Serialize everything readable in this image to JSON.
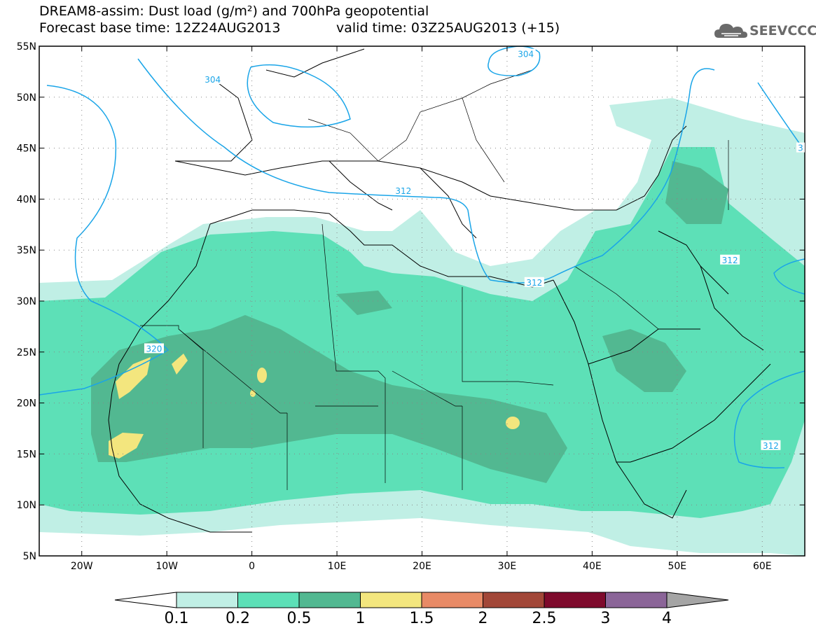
{
  "title_line1": "DREAM8-assim: Dust load (g/m²) and 700hPa geopotential",
  "title_line2": "Forecast base time: 12Z24AUG2013",
  "title_line3": "valid time: 03Z25AUG2013 (+15)",
  "logo_text": "SEEVCCC",
  "map": {
    "lon_range": [
      -25,
      65
    ],
    "lat_range": [
      5,
      55
    ],
    "lon_ticks": [
      {
        "value": -20,
        "label": "20W"
      },
      {
        "value": -10,
        "label": "10W"
      },
      {
        "value": 0,
        "label": "0"
      },
      {
        "value": 10,
        "label": "10E"
      },
      {
        "value": 20,
        "label": "20E"
      },
      {
        "value": 30,
        "label": "30E"
      },
      {
        "value": 40,
        "label": "40E"
      },
      {
        "value": 50,
        "label": "50E"
      },
      {
        "value": 60,
        "label": "60E"
      }
    ],
    "lat_ticks": [
      {
        "value": 55,
        "label": "55N"
      },
      {
        "value": 50,
        "label": "50N"
      },
      {
        "value": 45,
        "label": "45N"
      },
      {
        "value": 40,
        "label": "40N"
      },
      {
        "value": 35,
        "label": "35N"
      },
      {
        "value": 30,
        "label": "30N"
      },
      {
        "value": 25,
        "label": "25N"
      },
      {
        "value": 20,
        "label": "20N"
      },
      {
        "value": 15,
        "label": "15N"
      },
      {
        "value": 10,
        "label": "10N"
      },
      {
        "value": 5,
        "label": "5N"
      }
    ],
    "contour_labels": [
      {
        "text": "304",
        "lon": -25,
        "lat": 0,
        "at": [
          -4.6,
          51.7
        ]
      },
      {
        "text": "304",
        "lon": 0,
        "lat": 0,
        "at": [
          32.2,
          54.2
        ]
      },
      {
        "text": "312",
        "lon": 0,
        "lat": 0,
        "at": [
          17.8,
          40.8
        ]
      },
      {
        "text": "312",
        "lon": 0,
        "lat": 0,
        "at": [
          33.2,
          31.8
        ]
      },
      {
        "text": "312",
        "lon": 0,
        "lat": 0,
        "at": [
          56.2,
          34.0
        ]
      },
      {
        "text": "312",
        "lon": 0,
        "lat": 0,
        "at": [
          61.0,
          15.8
        ]
      },
      {
        "text": "320",
        "lon": 0,
        "lat": 0,
        "at": [
          -11.5,
          25.3
        ]
      },
      {
        "text": "3",
        "lon": 0,
        "lat": 0,
        "at": [
          64.5,
          45.0
        ]
      }
    ]
  },
  "colorbar": {
    "labels": [
      "0.1",
      "0.2",
      "0.5",
      "1",
      "1.5",
      "2",
      "2.5",
      "3",
      "4"
    ],
    "colors": [
      "#c0efe5",
      "#5de0b7",
      "#52b891",
      "#f3e67e",
      "#e88a66",
      "#a24738",
      "#7e0a2c",
      "#8b6598"
    ],
    "under_color": "#ffffff",
    "over_color": "#a5a5a5"
  }
}
